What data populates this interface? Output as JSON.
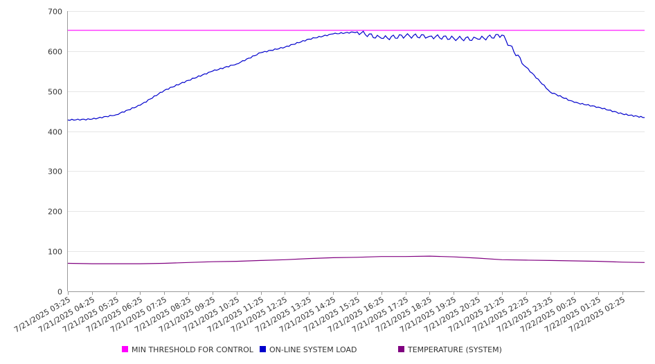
{
  "chart_data": {
    "type": "line",
    "x_tick_labels": [
      "7/21/2025 03:25",
      "7/21/2025 04:25",
      "7/21/2025 05:25",
      "7/21/2025 06:25",
      "7/21/2025 07:25",
      "7/21/2025 08:25",
      "7/21/2025 09:25",
      "7/21/2025 10:25",
      "7/21/2025 11:25",
      "7/21/2025 12:25",
      "7/21/2025 13:25",
      "7/21/2025 14:25",
      "7/21/2025 15:25",
      "7/21/2025 16:25",
      "7/21/2025 17:25",
      "7/21/2025 18:25",
      "7/21/2025 19:25",
      "7/21/2025 20:25",
      "7/21/2025 21:25",
      "7/21/2025 22:25",
      "7/21/2025 23:25",
      "7/22/2025 00:25",
      "7/22/2025 01:25",
      "7/22/2025 02:25"
    ],
    "x_range": [
      "7/21/2025 03:25",
      "7/22/2025 03:20"
    ],
    "y_ticks": [
      "0",
      "100",
      "200",
      "300",
      "400",
      "500",
      "600",
      "700"
    ],
    "ylim": [
      0,
      700
    ],
    "grid": "horizontal",
    "legend": "bottom",
    "series": [
      {
        "name": "MIN THRESHOLD FOR CONTROL",
        "color": "#ff00ff",
        "points": [
          [
            "7/21/2025 03:25",
            652
          ],
          [
            "7/22/2025 03:20",
            652
          ]
        ]
      },
      {
        "name": "ON-LINE SYSTEM LOAD",
        "color": "#0000cc",
        "points": [
          [
            "7/21/2025 03:25",
            428
          ],
          [
            "7/21/2025 04:25",
            430
          ],
          [
            "7/21/2025 05:25",
            441
          ],
          [
            "7/21/2025 06:25",
            465
          ],
          [
            "7/21/2025 07:25",
            502
          ],
          [
            "7/21/2025 08:25",
            527
          ],
          [
            "7/21/2025 09:25",
            550
          ],
          [
            "7/21/2025 10:25",
            568
          ],
          [
            "7/21/2025 11:25",
            596
          ],
          [
            "7/21/2025 12:25",
            610
          ],
          [
            "7/21/2025 13:25",
            630
          ],
          [
            "7/21/2025 14:25",
            643
          ],
          [
            "7/21/2025 15:25",
            648
          ],
          [
            "7/21/2025 16:25",
            632
          ],
          [
            "7/21/2025 17:25",
            638
          ],
          [
            "7/21/2025 18:25",
            637
          ],
          [
            "7/21/2025 19:25",
            632
          ],
          [
            "7/21/2025 20:25",
            630
          ],
          [
            "7/21/2025 21:25",
            640
          ],
          [
            "7/21/2025 22:25",
            560
          ],
          [
            "7/21/2025 23:25",
            498
          ],
          [
            "7/22/2025 00:25",
            472
          ],
          [
            "7/22/2025 01:25",
            460
          ],
          [
            "7/22/2025 02:25",
            443
          ],
          [
            "7/22/2025 03:20",
            434
          ]
        ]
      },
      {
        "name": "TEMPERATURE (SYSTEM)",
        "color": "#800080",
        "points": [
          [
            "7/21/2025 03:25",
            70
          ],
          [
            "7/21/2025 04:25",
            69
          ],
          [
            "7/21/2025 05:25",
            69
          ],
          [
            "7/21/2025 06:25",
            69
          ],
          [
            "7/21/2025 07:25",
            70
          ],
          [
            "7/21/2025 08:25",
            72
          ],
          [
            "7/21/2025 09:25",
            74
          ],
          [
            "7/21/2025 10:25",
            75
          ],
          [
            "7/21/2025 11:25",
            77
          ],
          [
            "7/21/2025 12:25",
            79
          ],
          [
            "7/21/2025 13:25",
            82
          ],
          [
            "7/21/2025 14:25",
            84
          ],
          [
            "7/21/2025 15:25",
            85
          ],
          [
            "7/21/2025 16:25",
            87
          ],
          [
            "7/21/2025 17:25",
            87
          ],
          [
            "7/21/2025 18:25",
            88
          ],
          [
            "7/21/2025 19:25",
            86
          ],
          [
            "7/21/2025 20:25",
            83
          ],
          [
            "7/21/2025 21:25",
            79
          ],
          [
            "7/21/2025 22:25",
            78
          ],
          [
            "7/21/2025 23:25",
            77
          ],
          [
            "7/22/2025 00:25",
            76
          ],
          [
            "7/22/2025 01:25",
            75
          ],
          [
            "7/22/2025 02:25",
            73
          ],
          [
            "7/22/2025 03:20",
            72
          ]
        ]
      }
    ]
  }
}
